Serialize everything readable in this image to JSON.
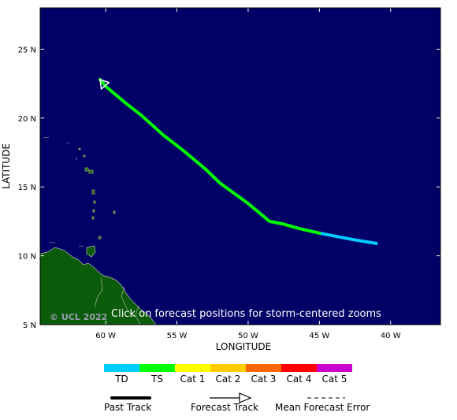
{
  "map": {
    "y_axis_title": "LATITUDE",
    "x_axis_title": "LONGITUDE",
    "lat_ticks": [
      "25 N",
      "20 N",
      "15 N",
      "10 N",
      "5 N"
    ],
    "lon_ticks": [
      "60 W",
      "55 W",
      "50 W",
      "45 W",
      "40 W"
    ],
    "lat_tick_values": [
      25,
      20,
      15,
      10,
      5
    ],
    "lon_tick_values": [
      -60,
      -55,
      -50,
      -45,
      -40
    ],
    "lat_range": [
      5,
      28
    ],
    "lon_range": [
      -64.6,
      -36.5
    ],
    "ocean_color": "#000066",
    "land_color": "#0a5c0a",
    "overlay_text": "Click on forecast positions for storm-centered zooms",
    "copyright": "© UCL 2022"
  },
  "track": {
    "past_color": "#00ccff",
    "ts_color": "#00ff00",
    "past_points": [
      [
        -41.0,
        10.9
      ],
      [
        -42.5,
        11.15
      ],
      [
        -44.0,
        11.45
      ],
      [
        -45.0,
        11.65
      ]
    ],
    "forecast_points": [
      [
        -45.0,
        11.65
      ],
      [
        -46.5,
        12.0
      ],
      [
        -47.5,
        12.3
      ],
      [
        -48.5,
        12.5
      ],
      [
        -50.0,
        13.8
      ],
      [
        -52.0,
        15.3
      ],
      [
        -53.0,
        16.3
      ],
      [
        -54.5,
        17.6
      ],
      [
        -56.0,
        18.8
      ],
      [
        -57.5,
        20.2
      ],
      [
        -58.5,
        21.0
      ],
      [
        -60.0,
        22.3
      ],
      [
        -60.4,
        22.8
      ]
    ]
  },
  "legend": {
    "scale": [
      {
        "label": "TD",
        "color": "#00ccff"
      },
      {
        "label": "TS",
        "color": "#00ff00"
      },
      {
        "label": "Cat 1",
        "color": "#ffff00"
      },
      {
        "label": "Cat 2",
        "color": "#ffcc00"
      },
      {
        "label": "Cat 3",
        "color": "#ff6600"
      },
      {
        "label": "Cat 4",
        "color": "#ff0000"
      },
      {
        "label": "Cat 5",
        "color": "#cc00cc"
      }
    ],
    "past_track_label": "Past Track",
    "forecast_track_label": "Forecast Track",
    "error_label": "Mean Forecast Error"
  }
}
